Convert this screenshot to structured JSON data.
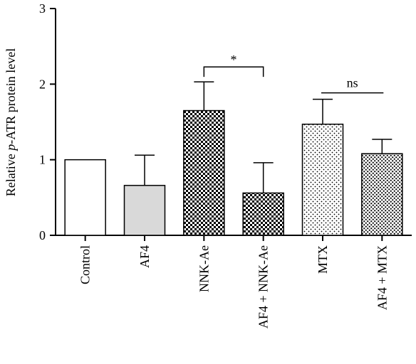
{
  "chart_data": {
    "type": "bar",
    "ylabel_prefix": "Relative ",
    "ylabel_italic": "p",
    "ylabel_suffix": "-ATR protein level",
    "xlabel": "",
    "ylim": [
      0,
      3
    ],
    "yticks": [
      "0",
      "1",
      "2",
      "3"
    ],
    "categories": [
      "Control",
      "AF4",
      "NNK-Ae",
      "AF4 + NNK-Ae",
      "MTX",
      "AF4 + MTX"
    ],
    "values": [
      1.0,
      0.66,
      1.65,
      0.56,
      1.47,
      1.08
    ],
    "errors": [
      0.0,
      0.4,
      0.38,
      0.4,
      0.33,
      0.19
    ],
    "fills": [
      "white",
      "light-gray",
      "checkered-dark",
      "checkered-dark",
      "dotted-light",
      "dotted-medium"
    ],
    "significance": [
      {
        "between": [
          2,
          3
        ],
        "label": "*"
      },
      {
        "between": [
          4,
          5
        ],
        "label": "ns"
      }
    ],
    "bar_color": "#000000",
    "light_gray": "#d9d9d9"
  }
}
